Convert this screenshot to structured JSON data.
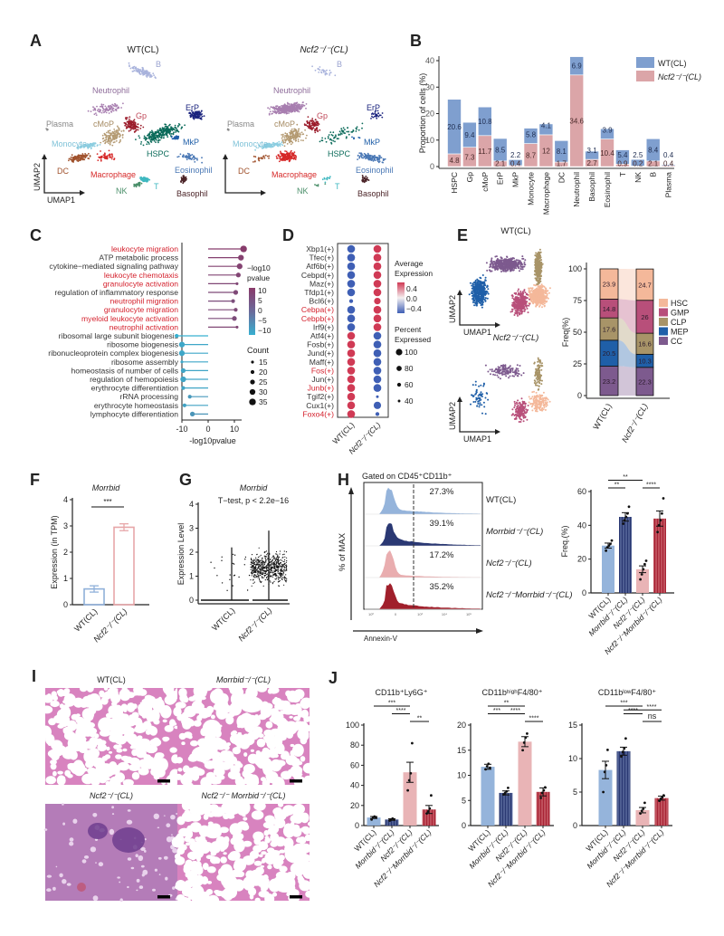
{
  "panel_labels": {
    "A": "A",
    "B": "B",
    "C": "C",
    "D": "D",
    "E": "E",
    "F": "F",
    "G": "G",
    "H": "H",
    "I": "I",
    "J": "J"
  },
  "colors": {
    "wt": "#8fb0d9",
    "morrbid": "#1f2d6b",
    "ncf2": "#e8b0b2",
    "double": "#a3182a",
    "stackWT": "#7f9fcf",
    "stackNcf2": "#dba5a8"
  },
  "umap": {
    "titles": [
      "WT(CL)",
      "Ncf2⁻/⁻(CL)"
    ],
    "axis_x": "UMAP1",
    "axis_y": "UMAP2",
    "clusters": [
      {
        "name": "B",
        "color": "#a9b3dc"
      },
      {
        "name": "Neutrophil",
        "color": "#a87fb0"
      },
      {
        "name": "Plasma",
        "color": "#8c8c8c"
      },
      {
        "name": "cMoP",
        "color": "#b49a72"
      },
      {
        "name": "Gp",
        "color": "#9b1b2a"
      },
      {
        "name": "ErP",
        "color": "#1a237e"
      },
      {
        "name": "MkP",
        "color": "#1f5fa8"
      },
      {
        "name": "Monocyte",
        "color": "#8ccde0"
      },
      {
        "name": "HSPC",
        "color": "#0b6b5a"
      },
      {
        "name": "DC",
        "color": "#a0522d"
      },
      {
        "name": "Macrophage",
        "color": "#d62828"
      },
      {
        "name": "Eosinophil",
        "color": "#4a78b5"
      },
      {
        "name": "NK",
        "color": "#4b8f6a"
      },
      {
        "name": "T",
        "color": "#3fb8c0"
      },
      {
        "name": "Basophil",
        "color": "#4a2327"
      }
    ]
  },
  "chart_data": [
    {
      "id": "B",
      "type": "bar",
      "stacked": true,
      "ylabel": "Proportion of cells (%)",
      "ylim": [
        0,
        42
      ],
      "yticks": [
        0,
        10,
        20,
        30,
        40
      ],
      "categories": [
        "HSPC",
        "Gp",
        "cMoP",
        "ErP",
        "MkP",
        "Monocyte",
        "Macrophage",
        "DC",
        "Neutrophil",
        "Basophil",
        "Eosinophil",
        "T",
        "NK",
        "B",
        "Plasma"
      ],
      "series": [
        {
          "name": "Ncf2⁻/⁻(CL)",
          "color": "#dba5a8",
          "values": [
            4.8,
            7.3,
            11.7,
            2.1,
            0.4,
            8.7,
            12,
            1.7,
            34.6,
            2.7,
            10.4,
            0.9,
            0.2,
            2.1,
            0.4
          ],
          "labels": [
            "4.8",
            "7.3",
            "11.7",
            "2.1",
            "0.4",
            "8.7",
            "12",
            "1.7",
            "34.6",
            "2.7",
            "10.4",
            "0.9",
            "0.2",
            "2.1",
            "0.4"
          ]
        },
        {
          "name": "WT(CL)",
          "color": "#7f9fcf",
          "values": [
            20.6,
            9.4,
            10.8,
            8.5,
            2.2,
            5.8,
            4.1,
            8.1,
            6.9,
            3.1,
            3.9,
            5.4,
            2.5,
            8.4,
            0.4
          ],
          "labels": [
            "20.6",
            "9.4",
            "10.8",
            "8.5",
            "2.2",
            "5.8",
            "4.1",
            "8.1",
            "6.9",
            "3.1",
            "3.9",
            "5.4",
            "2.5",
            "8.4",
            "0.4"
          ]
        }
      ],
      "legend": [
        "WT(CL)",
        "Ncf2⁻/⁻(CL)"
      ],
      "legend_position": "top-right"
    },
    {
      "id": "C",
      "type": "lollipop",
      "xlabel": "-log10pvalue",
      "xlim": [
        -12,
        14
      ],
      "xticks": [
        "-10",
        "0",
        "10"
      ],
      "terms": [
        {
          "label": "leukocyte migration",
          "value": 13.5,
          "count": 35,
          "highlight": true
        },
        {
          "label": "ATP metabolic process",
          "value": 12.5,
          "count": 30,
          "highlight": false
        },
        {
          "label": "cytokine−mediated signaling pathway",
          "value": 12,
          "count": 30,
          "highlight": false
        },
        {
          "label": "leukocyte chemotaxis",
          "value": 11.5,
          "count": 25,
          "highlight": true
        },
        {
          "label": "granulocyte activation",
          "value": 11,
          "count": 15,
          "highlight": true
        },
        {
          "label": "regulation of inflammatory response",
          "value": 10.5,
          "count": 25,
          "highlight": false
        },
        {
          "label": "neutrophil migration",
          "value": 9.5,
          "count": 20,
          "highlight": true
        },
        {
          "label": "granulocyte migration",
          "value": 10.5,
          "count": 20,
          "highlight": true
        },
        {
          "label": "myeloid leukocyte activation",
          "value": 10,
          "count": 25,
          "highlight": true
        },
        {
          "label": "neutrophil activation",
          "value": 11,
          "count": 15,
          "highlight": true
        },
        {
          "label": "ribosomal large subunit biogenesis",
          "value": -12,
          "count": 20,
          "highlight": false
        },
        {
          "label": "ribosome biogenesis",
          "value": -10,
          "count": 30,
          "highlight": false
        },
        {
          "label": "ribonucleoprotein complex biogenesis",
          "value": -10,
          "count": 30,
          "highlight": false
        },
        {
          "label": "ribosome assembly",
          "value": -10,
          "count": 15,
          "highlight": false
        },
        {
          "label": "homeostasis of number of cells",
          "value": -9.5,
          "count": 25,
          "highlight": false
        },
        {
          "label": "regulation of hemopoiesis",
          "value": -9.5,
          "count": 30,
          "highlight": false
        },
        {
          "label": "erythrocyte differentiation",
          "value": -9.5,
          "count": 20,
          "highlight": false
        },
        {
          "label": "rRNA processing",
          "value": -7,
          "count": 20,
          "highlight": false
        },
        {
          "label": "erythrocyte homeostasis",
          "value": -9,
          "count": 20,
          "highlight": false
        },
        {
          "label": "lymphocyte differentiation",
          "value": -6,
          "count": 25,
          "highlight": false
        }
      ],
      "color_legend": {
        "title1": "−log10",
        "title2": "pvalue",
        "ticks": [
          "10",
          "5",
          "0",
          "−5",
          "−10"
        ]
      },
      "size_legend": {
        "title": "Count",
        "ticks": [
          "15",
          "20",
          "25",
          "30",
          "35"
        ]
      }
    },
    {
      "id": "D",
      "type": "dotplot",
      "columns": [
        "WT(CL)",
        "Ncf2⁻/⁻(CL)"
      ],
      "genes": [
        {
          "label": "Xbp1(+)",
          "highlight": false,
          "wt": -0.4,
          "ncf2": 0.4,
          "wt_pct": 100,
          "ncf2_pct": 100
        },
        {
          "label": "Tfec(+)",
          "highlight": false,
          "wt": -0.4,
          "ncf2": 0.4,
          "wt_pct": 100,
          "ncf2_pct": 100
        },
        {
          "label": "Atf6b(+)",
          "highlight": false,
          "wt": -0.4,
          "ncf2": 0.4,
          "wt_pct": 100,
          "ncf2_pct": 100
        },
        {
          "label": "Cebpd(+)",
          "highlight": false,
          "wt": -0.4,
          "ncf2": 0.4,
          "wt_pct": 100,
          "ncf2_pct": 100
        },
        {
          "label": "Maz(+)",
          "highlight": false,
          "wt": -0.4,
          "ncf2": 0.4,
          "wt_pct": 100,
          "ncf2_pct": 100
        },
        {
          "label": "Tfdp1(+)",
          "highlight": false,
          "wt": -0.4,
          "ncf2": 0.4,
          "wt_pct": 100,
          "ncf2_pct": 100
        },
        {
          "label": "Bcl6(+)",
          "highlight": false,
          "wt": -0.4,
          "ncf2": 0.4,
          "wt_pct": 50,
          "ncf2_pct": 85
        },
        {
          "label": "Cebpa(+)",
          "highlight": true,
          "wt": -0.4,
          "ncf2": 0.4,
          "wt_pct": 100,
          "ncf2_pct": 100
        },
        {
          "label": "Cebpb(+)",
          "highlight": true,
          "wt": -0.4,
          "ncf2": 0.4,
          "wt_pct": 100,
          "ncf2_pct": 100
        },
        {
          "label": "Irf9(+)",
          "highlight": false,
          "wt": -0.4,
          "ncf2": 0.4,
          "wt_pct": 100,
          "ncf2_pct": 100
        },
        {
          "label": "Atf4(+)",
          "highlight": false,
          "wt": 0.4,
          "ncf2": -0.4,
          "wt_pct": 100,
          "ncf2_pct": 100
        },
        {
          "label": "Fosb(+)",
          "highlight": false,
          "wt": 0.4,
          "ncf2": -0.4,
          "wt_pct": 100,
          "ncf2_pct": 100
        },
        {
          "label": "Jund(+)",
          "highlight": false,
          "wt": 0.4,
          "ncf2": -0.4,
          "wt_pct": 100,
          "ncf2_pct": 100
        },
        {
          "label": "Maff(+)",
          "highlight": false,
          "wt": 0.4,
          "ncf2": -0.4,
          "wt_pct": 100,
          "ncf2_pct": 100
        },
        {
          "label": "Fos(+)",
          "highlight": true,
          "wt": 0.4,
          "ncf2": -0.4,
          "wt_pct": 100,
          "ncf2_pct": 100
        },
        {
          "label": "Jun(+)",
          "highlight": false,
          "wt": 0.4,
          "ncf2": -0.4,
          "wt_pct": 100,
          "ncf2_pct": 100
        },
        {
          "label": "Junb(+)",
          "highlight": true,
          "wt": 0.4,
          "ncf2": -0.4,
          "wt_pct": 100,
          "ncf2_pct": 100
        },
        {
          "label": "Tgif2(+)",
          "highlight": false,
          "wt": 0.4,
          "ncf2": -0.2,
          "wt_pct": 100,
          "ncf2_pct": 35
        },
        {
          "label": "Cux1(+)",
          "highlight": false,
          "wt": 0.4,
          "ncf2": -0.4,
          "wt_pct": 100,
          "ncf2_pct": 95
        },
        {
          "label": "Foxo4(+)",
          "highlight": true,
          "wt": 0.4,
          "ncf2": -0.4,
          "wt_pct": 100,
          "ncf2_pct": 50
        }
      ],
      "color_legend": {
        "title1": "Average",
        "title2": "Expression",
        "ticks": [
          "0.4",
          "0.0",
          "−0.4"
        ]
      },
      "size_legend": {
        "title1": "Percent",
        "title2": "Expressed",
        "ticks": [
          "100",
          "80",
          "60",
          "40"
        ]
      }
    },
    {
      "id": "E",
      "type": "bar",
      "stacked": true,
      "umap_titles": [
        "WT(CL)",
        "Ncf2⁻/⁻(CL)"
      ],
      "ylabel": "Freq(%)",
      "ylim": [
        0,
        100
      ],
      "yticks": [
        "0",
        "25",
        "50",
        "75",
        "100"
      ],
      "categories": [
        "WT(CL)",
        "Ncf2⁻/⁻(CL)"
      ],
      "series": [
        {
          "name": "HSC",
          "color": "#f4b89a",
          "values": [
            23.9,
            24.7
          ]
        },
        {
          "name": "GMP",
          "color": "#b84f7a",
          "values": [
            14.8,
            26
          ]
        },
        {
          "name": "CLP",
          "color": "#a89468",
          "values": [
            17.6,
            16.6
          ]
        },
        {
          "name": "MEP",
          "color": "#1f5fa8",
          "values": [
            20.5,
            10.3
          ]
        },
        {
          "name": "CC",
          "color": "#7d5a8e",
          "values": [
            23.2,
            22.3
          ]
        }
      ],
      "legend_position": "right"
    },
    {
      "id": "F",
      "type": "bar",
      "title": "Morrbid",
      "ylabel": "Expression (in TPM)",
      "ylim": [
        0,
        4
      ],
      "yticks": [
        "0",
        "1",
        "2",
        "3",
        "4"
      ],
      "categories": [
        "WT(CL)",
        "Ncf2⁻/⁻(CL)"
      ],
      "values": [
        0.6,
        2.95
      ],
      "errors": [
        0.12,
        0.13
      ],
      "significance": [
        {
          "a": 0,
          "b": 1,
          "label": "***"
        }
      ]
    },
    {
      "id": "G",
      "type": "violin",
      "title": "Morrbid",
      "annotation": "T−test, p < 2.2e−16",
      "ylabel": "Expression Level",
      "ylim": [
        0,
        4
      ],
      "yticks": [
        "0",
        "1",
        "2",
        "3",
        "4"
      ],
      "categories": [
        "WT(CL)",
        "Ncf2⁻/⁻(CL)"
      ],
      "max_values": [
        2.2,
        2.9
      ]
    },
    {
      "id": "H_hist",
      "type": "area",
      "title": "Gated on CD45⁺CD11b⁺",
      "xlabel": "Annexin-V",
      "ylabel": "% of MAX",
      "rows": [
        {
          "name": "WT(CL)",
          "percent": "27.3%",
          "color": "#8fb0d9"
        },
        {
          "name": "Morrbid⁻/⁻(CL)",
          "percent": "39.1%",
          "color": "#1f2d6b"
        },
        {
          "name": "Ncf2⁻/⁻(CL)",
          "percent": "17.2%",
          "color": "#e8a9ab"
        },
        {
          "name": "Ncf2⁻/⁻Morrbid⁻/⁻(CL)",
          "percent": "35.2%",
          "color": "#9b1320"
        }
      ]
    },
    {
      "id": "H_bar",
      "type": "bar",
      "ylabel": "Freq.(%)",
      "ylim": [
        0,
        60
      ],
      "yticks": [
        "0",
        "20",
        "40",
        "60"
      ],
      "categories": [
        "WT(CL)",
        "Morrbid⁻/⁻(CL)",
        "Ncf2⁻/⁻(CL)",
        "Ncf2⁻/⁻Morrbid⁻/⁻(CL)"
      ],
      "values": [
        28,
        45,
        14,
        44
      ],
      "errors": [
        1.5,
        2.5,
        2,
        4.5
      ],
      "points": [
        [
          25,
          27,
          28,
          29,
          31
        ],
        [
          41,
          43,
          45,
          47,
          51
        ],
        [
          8,
          11,
          14,
          17,
          19
        ],
        [
          36,
          40,
          43,
          47,
          56
        ]
      ],
      "significance": [
        {
          "a": 0,
          "b": 2,
          "label": "**",
          "level": 2
        },
        {
          "a": 0,
          "b": 1,
          "label": "**",
          "level": 1
        },
        {
          "a": 2,
          "b": 3,
          "label": "****",
          "level": 1
        }
      ]
    },
    {
      "id": "J1",
      "type": "bar",
      "title": "CD11b⁺Ly6G⁺",
      "ylim": [
        0,
        100
      ],
      "yticks": [
        "0",
        "20",
        "40",
        "60",
        "80",
        "100"
      ],
      "categories": [
        "WT(CL)",
        "Morrbid⁻/⁻(CL)",
        "Ncf2⁻/⁻(CL)",
        "Ncf2⁻/⁻Morrbid⁻/⁻(CL)"
      ],
      "values": [
        8,
        6,
        53,
        16
      ],
      "errors": [
        1,
        0.8,
        10,
        4
      ],
      "points": [
        [
          6,
          8,
          9,
          8
        ],
        [
          5,
          6,
          7,
          6
        ],
        [
          35,
          45,
          52,
          82
        ],
        [
          12,
          14,
          17,
          30
        ]
      ],
      "significance": [
        {
          "a": 0,
          "b": 2,
          "label": "***",
          "level": 3
        },
        {
          "a": 1,
          "b": 2,
          "label": "****",
          "level": 2
        },
        {
          "a": 2,
          "b": 3,
          "label": "**",
          "level": 1
        }
      ]
    },
    {
      "id": "J2",
      "type": "bar",
      "title": "CD11bʰⁱᵍʰF4/80⁺",
      "ylim": [
        0,
        20
      ],
      "yticks": [
        "0",
        "5",
        "10",
        "15",
        "20"
      ],
      "categories": [
        "WT(CL)",
        "Morrbid⁻/⁻(CL)",
        "Ncf2⁻/⁻(CL)",
        "Ncf2⁻/⁻Morrbid⁻/⁻(CL)"
      ],
      "values": [
        11.7,
        6.5,
        16.7,
        6.7
      ],
      "errors": [
        0.5,
        0.4,
        1,
        0.8
      ],
      "points": [
        [
          11.2,
          11.8,
          12.3,
          11.5
        ],
        [
          6.2,
          6.5,
          6.8,
          7.5
        ],
        [
          15,
          16.5,
          17.5,
          18.3
        ],
        [
          5.5,
          6.5,
          7,
          7.6
        ]
      ],
      "significance": [
        {
          "a": 0,
          "b": 2,
          "label": "**",
          "level": 3
        },
        {
          "a": 0,
          "b": 1,
          "label": "***",
          "level": 2
        },
        {
          "a": 1,
          "b": 2,
          "label": "****",
          "level": 2
        },
        {
          "a": 2,
          "b": 3,
          "label": "****",
          "level": 1
        }
      ]
    },
    {
      "id": "J3",
      "type": "bar",
      "title": "CD11bˡᵒʷF4/80⁺",
      "ylim": [
        0,
        15
      ],
      "yticks": [
        "0",
        "5",
        "10",
        "15"
      ],
      "categories": [
        "WT(CL)",
        "Morrbid⁻/⁻(CL)",
        "Ncf2⁻/⁻(CL)",
        "Ncf2⁻/⁻Morrbid⁻/⁻(CL)"
      ],
      "values": [
        8.3,
        11.1,
        2.3,
        4.1
      ],
      "errors": [
        1.3,
        0.6,
        0.4,
        0.3
      ],
      "points": [
        [
          5,
          8,
          9,
          11.3
        ],
        [
          10.3,
          11,
          11.5,
          13
        ],
        [
          1.8,
          2.2,
          2.5,
          3.4
        ],
        [
          3.7,
          4,
          4.2,
          4.5
        ]
      ],
      "significance": [
        {
          "a": 0,
          "b": 2,
          "label": "***",
          "level": 3
        },
        {
          "a": 1,
          "b": 2,
          "label": "****",
          "level": 2
        },
        {
          "a": 1,
          "b": 3,
          "label": "****",
          "level": 2.5
        },
        {
          "a": 2,
          "b": 3,
          "label": "ns",
          "level": 1
        }
      ]
    }
  ],
  "histology": {
    "titles": [
      "WT(CL)",
      "Morrbid⁻/⁻(CL)",
      "Ncf2⁻/⁻(CL)",
      "Ncf2⁻/⁻ Morrbid⁻/⁻(CL)"
    ]
  }
}
